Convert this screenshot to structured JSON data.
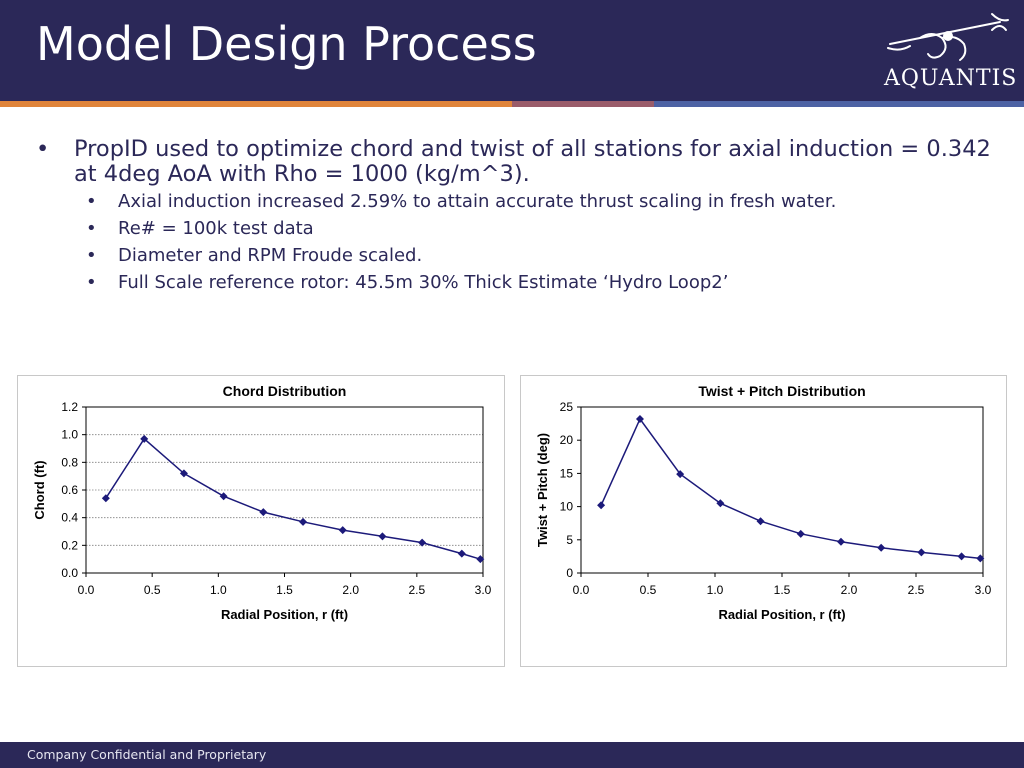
{
  "slide": {
    "title": "Model Design Process",
    "logo_text": "AQUANTIS",
    "bullets": {
      "main": "PropID used to optimize chord and twist of all stations for axial induction = 0.342 at 4deg AoA with Rho = 1000 (kg/m^3).",
      "sub": [
        "Axial induction increased 2.59% to attain accurate thrust scaling in fresh water.",
        "Re# = 100k test data",
        "Diameter and RPM Froude scaled.",
        "Full Scale reference rotor: 45.5m 30% Thick Estimate ‘Hydro Loop2’"
      ]
    },
    "footer": "Company Confidential and Proprietary"
  },
  "colors": {
    "header": "#2b2858",
    "stripe_orange": "#e0843a",
    "stripe_mauve": "#9a5c6a",
    "stripe_blue": "#4d62a4",
    "series": "#1c1a7a"
  },
  "chart_data": [
    {
      "type": "line",
      "title": "Chord Distribution",
      "xlabel": "Radial Position, r (ft)",
      "ylabel": "Chord (ft)",
      "xlim": [
        0,
        3.0
      ],
      "ylim": [
        0,
        1.2
      ],
      "xticks": [
        "0.0",
        "0.5",
        "1.0",
        "1.5",
        "2.0",
        "2.5",
        "3.0"
      ],
      "yticks": [
        "0.0",
        "0.2",
        "0.4",
        "0.6",
        "0.8",
        "1.0",
        "1.2"
      ],
      "grid": true,
      "legend": "none",
      "x": [
        0.15,
        0.44,
        0.74,
        1.04,
        1.34,
        1.64,
        1.94,
        2.24,
        2.54,
        2.84,
        2.98
      ],
      "y": [
        0.54,
        0.97,
        0.72,
        0.555,
        0.44,
        0.37,
        0.31,
        0.265,
        0.22,
        0.14,
        0.1
      ]
    },
    {
      "type": "line",
      "title": "Twist + Pitch Distribution",
      "xlabel": "Radial Position, r (ft)",
      "ylabel": "Twist + Pitch (deg)",
      "xlim": [
        0,
        3.0
      ],
      "ylim": [
        0,
        25
      ],
      "xticks": [
        "0.0",
        "0.5",
        "1.0",
        "1.5",
        "2.0",
        "2.5",
        "3.0"
      ],
      "yticks": [
        "0",
        "5",
        "10",
        "15",
        "20",
        "25"
      ],
      "grid": false,
      "legend": "none",
      "x": [
        0.15,
        0.44,
        0.74,
        1.04,
        1.34,
        1.64,
        1.94,
        2.24,
        2.54,
        2.84,
        2.98
      ],
      "y": [
        10.2,
        23.2,
        14.9,
        10.5,
        7.8,
        5.9,
        4.7,
        3.8,
        3.1,
        2.5,
        2.2
      ]
    }
  ]
}
